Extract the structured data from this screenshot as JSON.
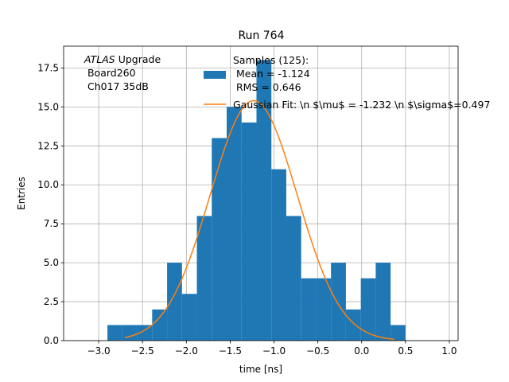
{
  "chart_data": {
    "type": "bar",
    "title": "Run 764",
    "xlabel": "time [ns]",
    "ylabel": "Entries",
    "xlim": [
      -3.4,
      1.1
    ],
    "ylim": [
      0,
      18.9
    ],
    "grid": true,
    "xticks": [
      -3.0,
      -2.5,
      -2.0,
      -1.5,
      -1.0,
      -0.5,
      0.0,
      0.5,
      1.0
    ],
    "xtick_labels": [
      "−3.0",
      "−2.5",
      "−2.0",
      "−1.5",
      "−1.0",
      "−0.5",
      "0.0",
      "0.5",
      "1.0"
    ],
    "yticks": [
      0.0,
      2.5,
      5.0,
      7.5,
      10.0,
      12.5,
      15.0,
      17.5
    ],
    "ytick_labels": [
      "0.0",
      "2.5",
      "5.0",
      "7.5",
      "10.0",
      "12.5",
      "15.0",
      "17.5"
    ],
    "annotation": {
      "line1_italic": "ATLAS",
      "line1_rest": " Upgrade",
      "line2": " Board260",
      "line3": " Ch017 35dB"
    },
    "histogram": {
      "bin_edges": [
        -2.9,
        -2.73,
        -2.56,
        -2.39,
        -2.22,
        -2.05,
        -1.88,
        -1.71,
        -1.54,
        -1.37,
        -1.2,
        -1.03,
        -0.86,
        -0.69,
        -0.52,
        -0.35,
        -0.18,
        -0.01,
        0.16,
        0.33,
        0.5
      ],
      "counts": [
        1,
        1,
        1,
        2,
        5,
        3,
        8,
        13,
        15,
        14,
        18,
        11,
        8,
        4,
        4,
        5,
        2,
        4,
        5,
        1
      ],
      "color": "#1f77b4",
      "legend_lines": [
        "Samples (125):",
        " Mean = -1.124",
        " RMS = 0.646"
      ]
    },
    "fit": {
      "amplitude": 15.4,
      "mu": -1.232,
      "sigma": 0.497,
      "x_range": [
        -2.7,
        0.37
      ],
      "color": "#ff7f0e",
      "legend_label": "Gaussian Fit: \\n $\\mu$ = -1.232 \\n $\\sigma$=0.497"
    }
  }
}
